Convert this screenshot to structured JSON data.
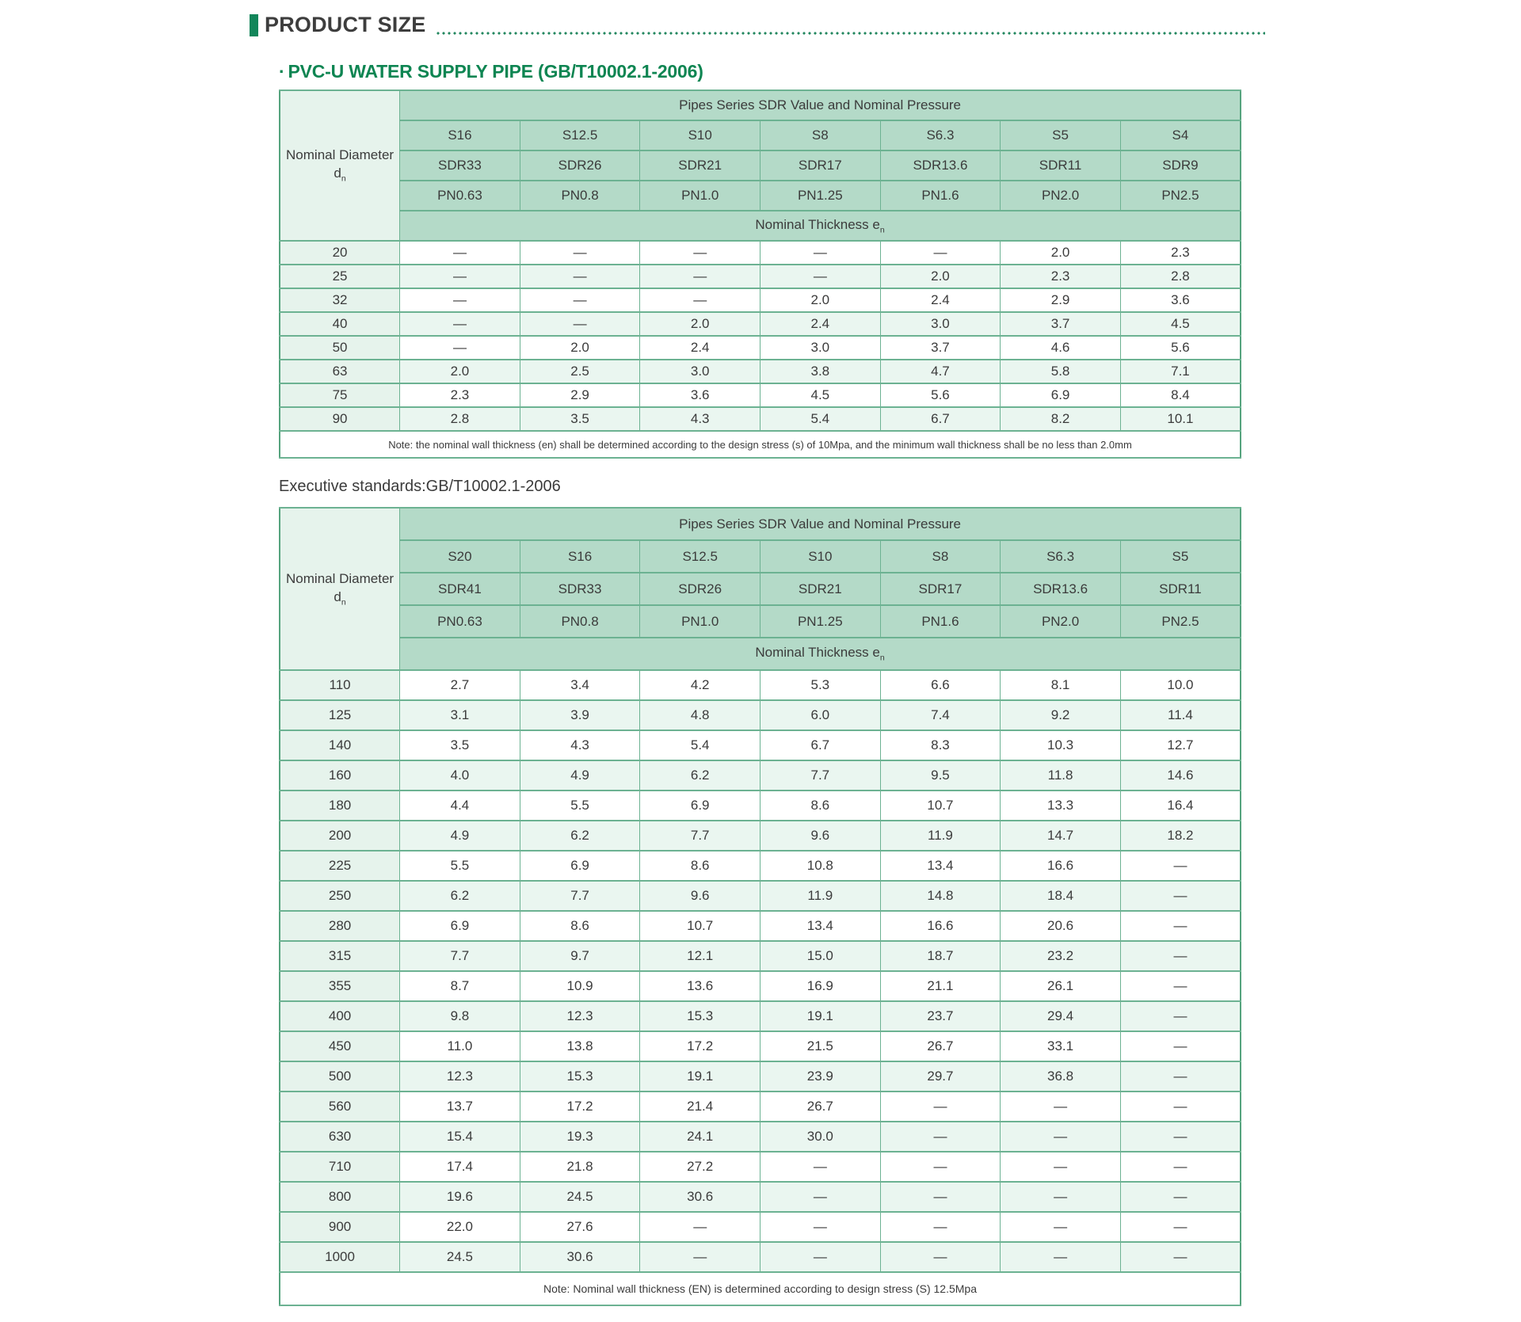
{
  "page": {
    "section_title": "PRODUCT SIZE",
    "subtitle_bullet": "·",
    "subtitle": "PVC-U WATER SUPPLY PIPE (GB/T10002.1-2006)",
    "executive_standards": "Executive standards:GB/T10002.1-2006"
  },
  "colors": {
    "accent_green": "#12865a",
    "subtitle_green": "#0e8552",
    "table_header_band": "#b4dac8",
    "table_light_cell": "#e6f3ec",
    "table_alt_row": "#eaf6f0",
    "table_border": "#6cb292",
    "dotted_divider": "#23875f",
    "text": "#3b3b3b"
  },
  "table1": {
    "corner_label": "Nominal Diameter",
    "corner_symbol": "d",
    "corner_symbol_sub": "n",
    "header_title": "Pipes Series SDR Value and Nominal Pressure",
    "s": [
      "S16",
      "S12.5",
      "S10",
      "S8",
      "S6.3",
      "S5",
      "S4"
    ],
    "sdr": [
      "SDR33",
      "SDR26",
      "SDR21",
      "SDR17",
      "SDR13.6",
      "SDR11",
      "SDR9"
    ],
    "pn": [
      "PN0.63",
      "PN0.8",
      "PN1.0",
      "PN1.25",
      "PN1.6",
      "PN2.0",
      "PN2.5"
    ],
    "thickness_label": "Nominal Thickness e",
    "thickness_sub": "n",
    "rows": [
      {
        "dn": "20",
        "values": [
          "—",
          "—",
          "—",
          "—",
          "—",
          "2.0",
          "2.3"
        ]
      },
      {
        "dn": "25",
        "values": [
          "—",
          "—",
          "—",
          "—",
          "2.0",
          "2.3",
          "2.8"
        ]
      },
      {
        "dn": "32",
        "values": [
          "—",
          "—",
          "—",
          "2.0",
          "2.4",
          "2.9",
          "3.6"
        ]
      },
      {
        "dn": "40",
        "values": [
          "—",
          "—",
          "2.0",
          "2.4",
          "3.0",
          "3.7",
          "4.5"
        ]
      },
      {
        "dn": "50",
        "values": [
          "—",
          "2.0",
          "2.4",
          "3.0",
          "3.7",
          "4.6",
          "5.6"
        ]
      },
      {
        "dn": "63",
        "values": [
          "2.0",
          "2.5",
          "3.0",
          "3.8",
          "4.7",
          "5.8",
          "7.1"
        ]
      },
      {
        "dn": "75",
        "values": [
          "2.3",
          "2.9",
          "3.6",
          "4.5",
          "5.6",
          "6.9",
          "8.4"
        ]
      },
      {
        "dn": "90",
        "values": [
          "2.8",
          "3.5",
          "4.3",
          "5.4",
          "6.7",
          "8.2",
          "10.1"
        ]
      }
    ],
    "note": "Note: the nominal wall thickness (en) shall be determined according to the design stress (s) of 10Mpa, and the minimum wall thickness shall be no less than 2.0mm"
  },
  "table2": {
    "corner_label": "Nominal Diameter",
    "corner_symbol": "d",
    "corner_symbol_sub": "n",
    "header_title": "Pipes Series SDR Value and Nominal Pressure",
    "s": [
      "S20",
      "S16",
      "S12.5",
      "S10",
      "S8",
      "S6.3",
      "S5"
    ],
    "sdr": [
      "SDR41",
      "SDR33",
      "SDR26",
      "SDR21",
      "SDR17",
      "SDR13.6",
      "SDR11"
    ],
    "pn": [
      "PN0.63",
      "PN0.8",
      "PN1.0",
      "PN1.25",
      "PN1.6",
      "PN2.0",
      "PN2.5"
    ],
    "thickness_label": "Nominal Thickness e",
    "thickness_sub": "n",
    "rows": [
      {
        "dn": "110",
        "values": [
          "2.7",
          "3.4",
          "4.2",
          "5.3",
          "6.6",
          "8.1",
          "10.0"
        ]
      },
      {
        "dn": "125",
        "values": [
          "3.1",
          "3.9",
          "4.8",
          "6.0",
          "7.4",
          "9.2",
          "11.4"
        ]
      },
      {
        "dn": "140",
        "values": [
          "3.5",
          "4.3",
          "5.4",
          "6.7",
          "8.3",
          "10.3",
          "12.7"
        ]
      },
      {
        "dn": "160",
        "values": [
          "4.0",
          "4.9",
          "6.2",
          "7.7",
          "9.5",
          "11.8",
          "14.6"
        ]
      },
      {
        "dn": "180",
        "values": [
          "4.4",
          "5.5",
          "6.9",
          "8.6",
          "10.7",
          "13.3",
          "16.4"
        ]
      },
      {
        "dn": "200",
        "values": [
          "4.9",
          "6.2",
          "7.7",
          "9.6",
          "11.9",
          "14.7",
          "18.2"
        ]
      },
      {
        "dn": "225",
        "values": [
          "5.5",
          "6.9",
          "8.6",
          "10.8",
          "13.4",
          "16.6",
          "—"
        ]
      },
      {
        "dn": "250",
        "values": [
          "6.2",
          "7.7",
          "9.6",
          "11.9",
          "14.8",
          "18.4",
          "—"
        ]
      },
      {
        "dn": "280",
        "values": [
          "6.9",
          "8.6",
          "10.7",
          "13.4",
          "16.6",
          "20.6",
          "—"
        ]
      },
      {
        "dn": "315",
        "values": [
          "7.7",
          "9.7",
          "12.1",
          "15.0",
          "18.7",
          "23.2",
          "—"
        ]
      },
      {
        "dn": "355",
        "values": [
          "8.7",
          "10.9",
          "13.6",
          "16.9",
          "21.1",
          "26.1",
          "—"
        ]
      },
      {
        "dn": "400",
        "values": [
          "9.8",
          "12.3",
          "15.3",
          "19.1",
          "23.7",
          "29.4",
          "—"
        ]
      },
      {
        "dn": "450",
        "values": [
          "11.0",
          "13.8",
          "17.2",
          "21.5",
          "26.7",
          "33.1",
          "—"
        ]
      },
      {
        "dn": "500",
        "values": [
          "12.3",
          "15.3",
          "19.1",
          "23.9",
          "29.7",
          "36.8",
          "—"
        ]
      },
      {
        "dn": "560",
        "values": [
          "13.7",
          "17.2",
          "21.4",
          "26.7",
          "—",
          "—",
          "—"
        ]
      },
      {
        "dn": "630",
        "values": [
          "15.4",
          "19.3",
          "24.1",
          "30.0",
          "—",
          "—",
          "—"
        ]
      },
      {
        "dn": "710",
        "values": [
          "17.4",
          "21.8",
          "27.2",
          "—",
          "—",
          "—",
          "—"
        ]
      },
      {
        "dn": "800",
        "values": [
          "19.6",
          "24.5",
          "30.6",
          "—",
          "—",
          "—",
          "—"
        ]
      },
      {
        "dn": "900",
        "values": [
          "22.0",
          "27.6",
          "—",
          "—",
          "—",
          "—",
          "—"
        ]
      },
      {
        "dn": "1000",
        "values": [
          "24.5",
          "30.6",
          "—",
          "—",
          "—",
          "—",
          "—"
        ]
      }
    ],
    "note": "Note: Nominal wall thickness (EN) is determined according to design stress (S) 12.5Mpa"
  }
}
